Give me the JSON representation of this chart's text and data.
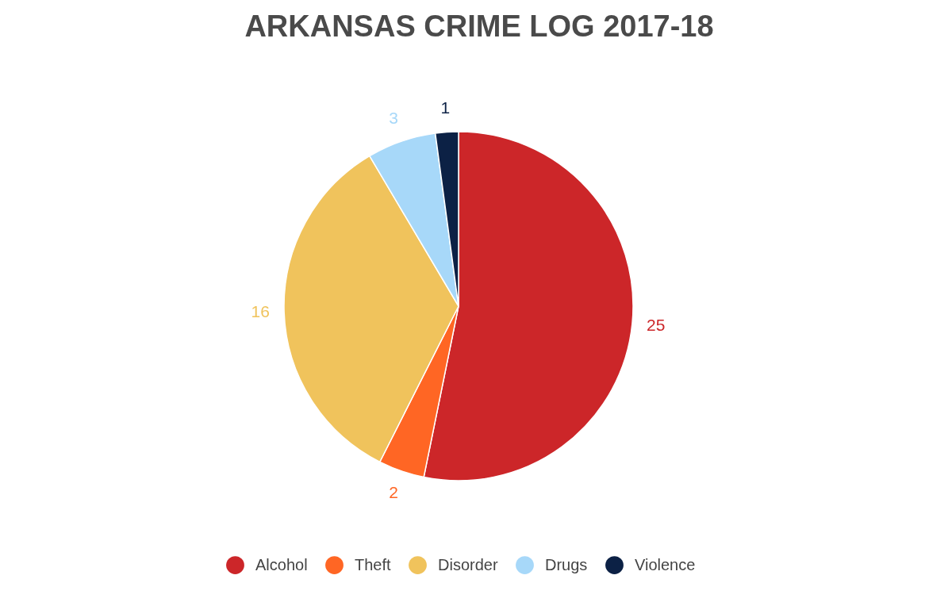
{
  "chart_data": {
    "type": "pie",
    "title": "ARKANSAS CRIME LOG 2017-18",
    "categories": [
      "Alcohol",
      "Theft",
      "Disorder",
      "Drugs",
      "Violence"
    ],
    "values": [
      25,
      2,
      16,
      3,
      1
    ],
    "colors": [
      "#cc2629",
      "#ff6624",
      "#f0c35c",
      "#a7d8f9",
      "#0c2145"
    ],
    "data_labels": true,
    "legend": "bottom"
  }
}
